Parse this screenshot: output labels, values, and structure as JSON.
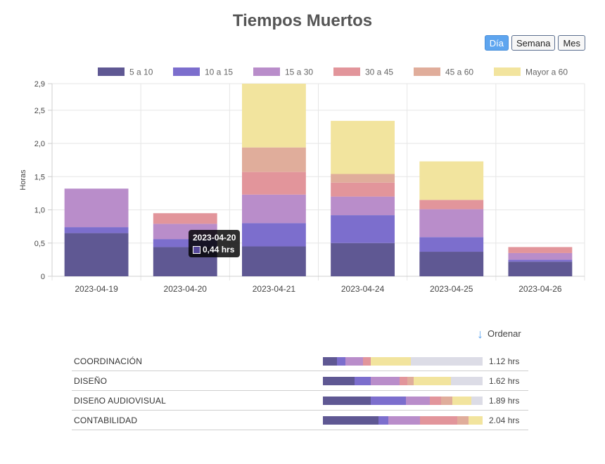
{
  "title": "Tiempos Muertos",
  "buttons": [
    {
      "label": "Día",
      "active": true
    },
    {
      "label": "Semana",
      "active": false
    },
    {
      "label": "Mes",
      "active": false
    }
  ],
  "colors": [
    "#5f5893",
    "#7c6ecd",
    "#b98dca",
    "#e2959b",
    "#e0ad9b",
    "#f2e49e"
  ],
  "remainder_color": "#dcdce6",
  "chart_data": {
    "type": "bar",
    "stacked": true,
    "categories": [
      "2023-04-19",
      "2023-04-20",
      "2023-04-21",
      "2023-04-24",
      "2023-04-25",
      "2023-04-26"
    ],
    "series": [
      {
        "name": "5 a 10",
        "values": [
          0.65,
          0.44,
          0.45,
          0.5,
          0.37,
          0.22
        ]
      },
      {
        "name": "10 a 15",
        "values": [
          0.09,
          0.12,
          0.35,
          0.42,
          0.22,
          0.03
        ]
      },
      {
        "name": "15 a 30",
        "values": [
          0.58,
          0.23,
          0.43,
          0.28,
          0.42,
          0.1
        ]
      },
      {
        "name": "30 a 45",
        "values": [
          0,
          0.16,
          0.34,
          0.21,
          0.14,
          0.09
        ]
      },
      {
        "name": "45 a 60",
        "values": [
          0,
          0,
          0.37,
          0.13,
          0,
          0
        ]
      },
      {
        "name": "Mayor a 60",
        "values": [
          0,
          0,
          0.96,
          0.8,
          0.58,
          0
        ]
      }
    ],
    "ylabel": "Horas",
    "ylim": [
      0,
      2.9
    ],
    "yticks": [
      "0",
      "0,5",
      "1,0",
      "1,5",
      "2,0",
      "2,5",
      "2,9"
    ],
    "ytick_values": [
      0,
      0.5,
      1.0,
      1.5,
      2.0,
      2.5,
      2.9
    ],
    "legend_position": "top-center",
    "grid": true,
    "tooltip": {
      "title": "2023-04-20",
      "value": "0,44 hrs",
      "series": "5 a 10"
    }
  },
  "sort": {
    "label": "Ordenar",
    "icon": "arrow-down-icon"
  },
  "departments": [
    {
      "name": "COORDINACIÓN",
      "value": "1.12 hrs",
      "fractions": [
        0.09,
        0.05,
        0.11,
        0.05,
        0,
        0.25
      ]
    },
    {
      "name": "DISEÑO",
      "value": "1.62 hrs",
      "fractions": [
        0.2,
        0.1,
        0.18,
        0.05,
        0.04,
        0.23
      ]
    },
    {
      "name": "DISEñO AUDIOVISUAL",
      "value": "1.89 hrs",
      "fractions": [
        0.3,
        0.22,
        0.15,
        0.07,
        0.07,
        0.12
      ]
    },
    {
      "name": "CONTABILIDAD",
      "value": "2.04 hrs",
      "fractions": [
        0.35,
        0.06,
        0.2,
        0.23,
        0.07,
        0.09
      ]
    }
  ]
}
